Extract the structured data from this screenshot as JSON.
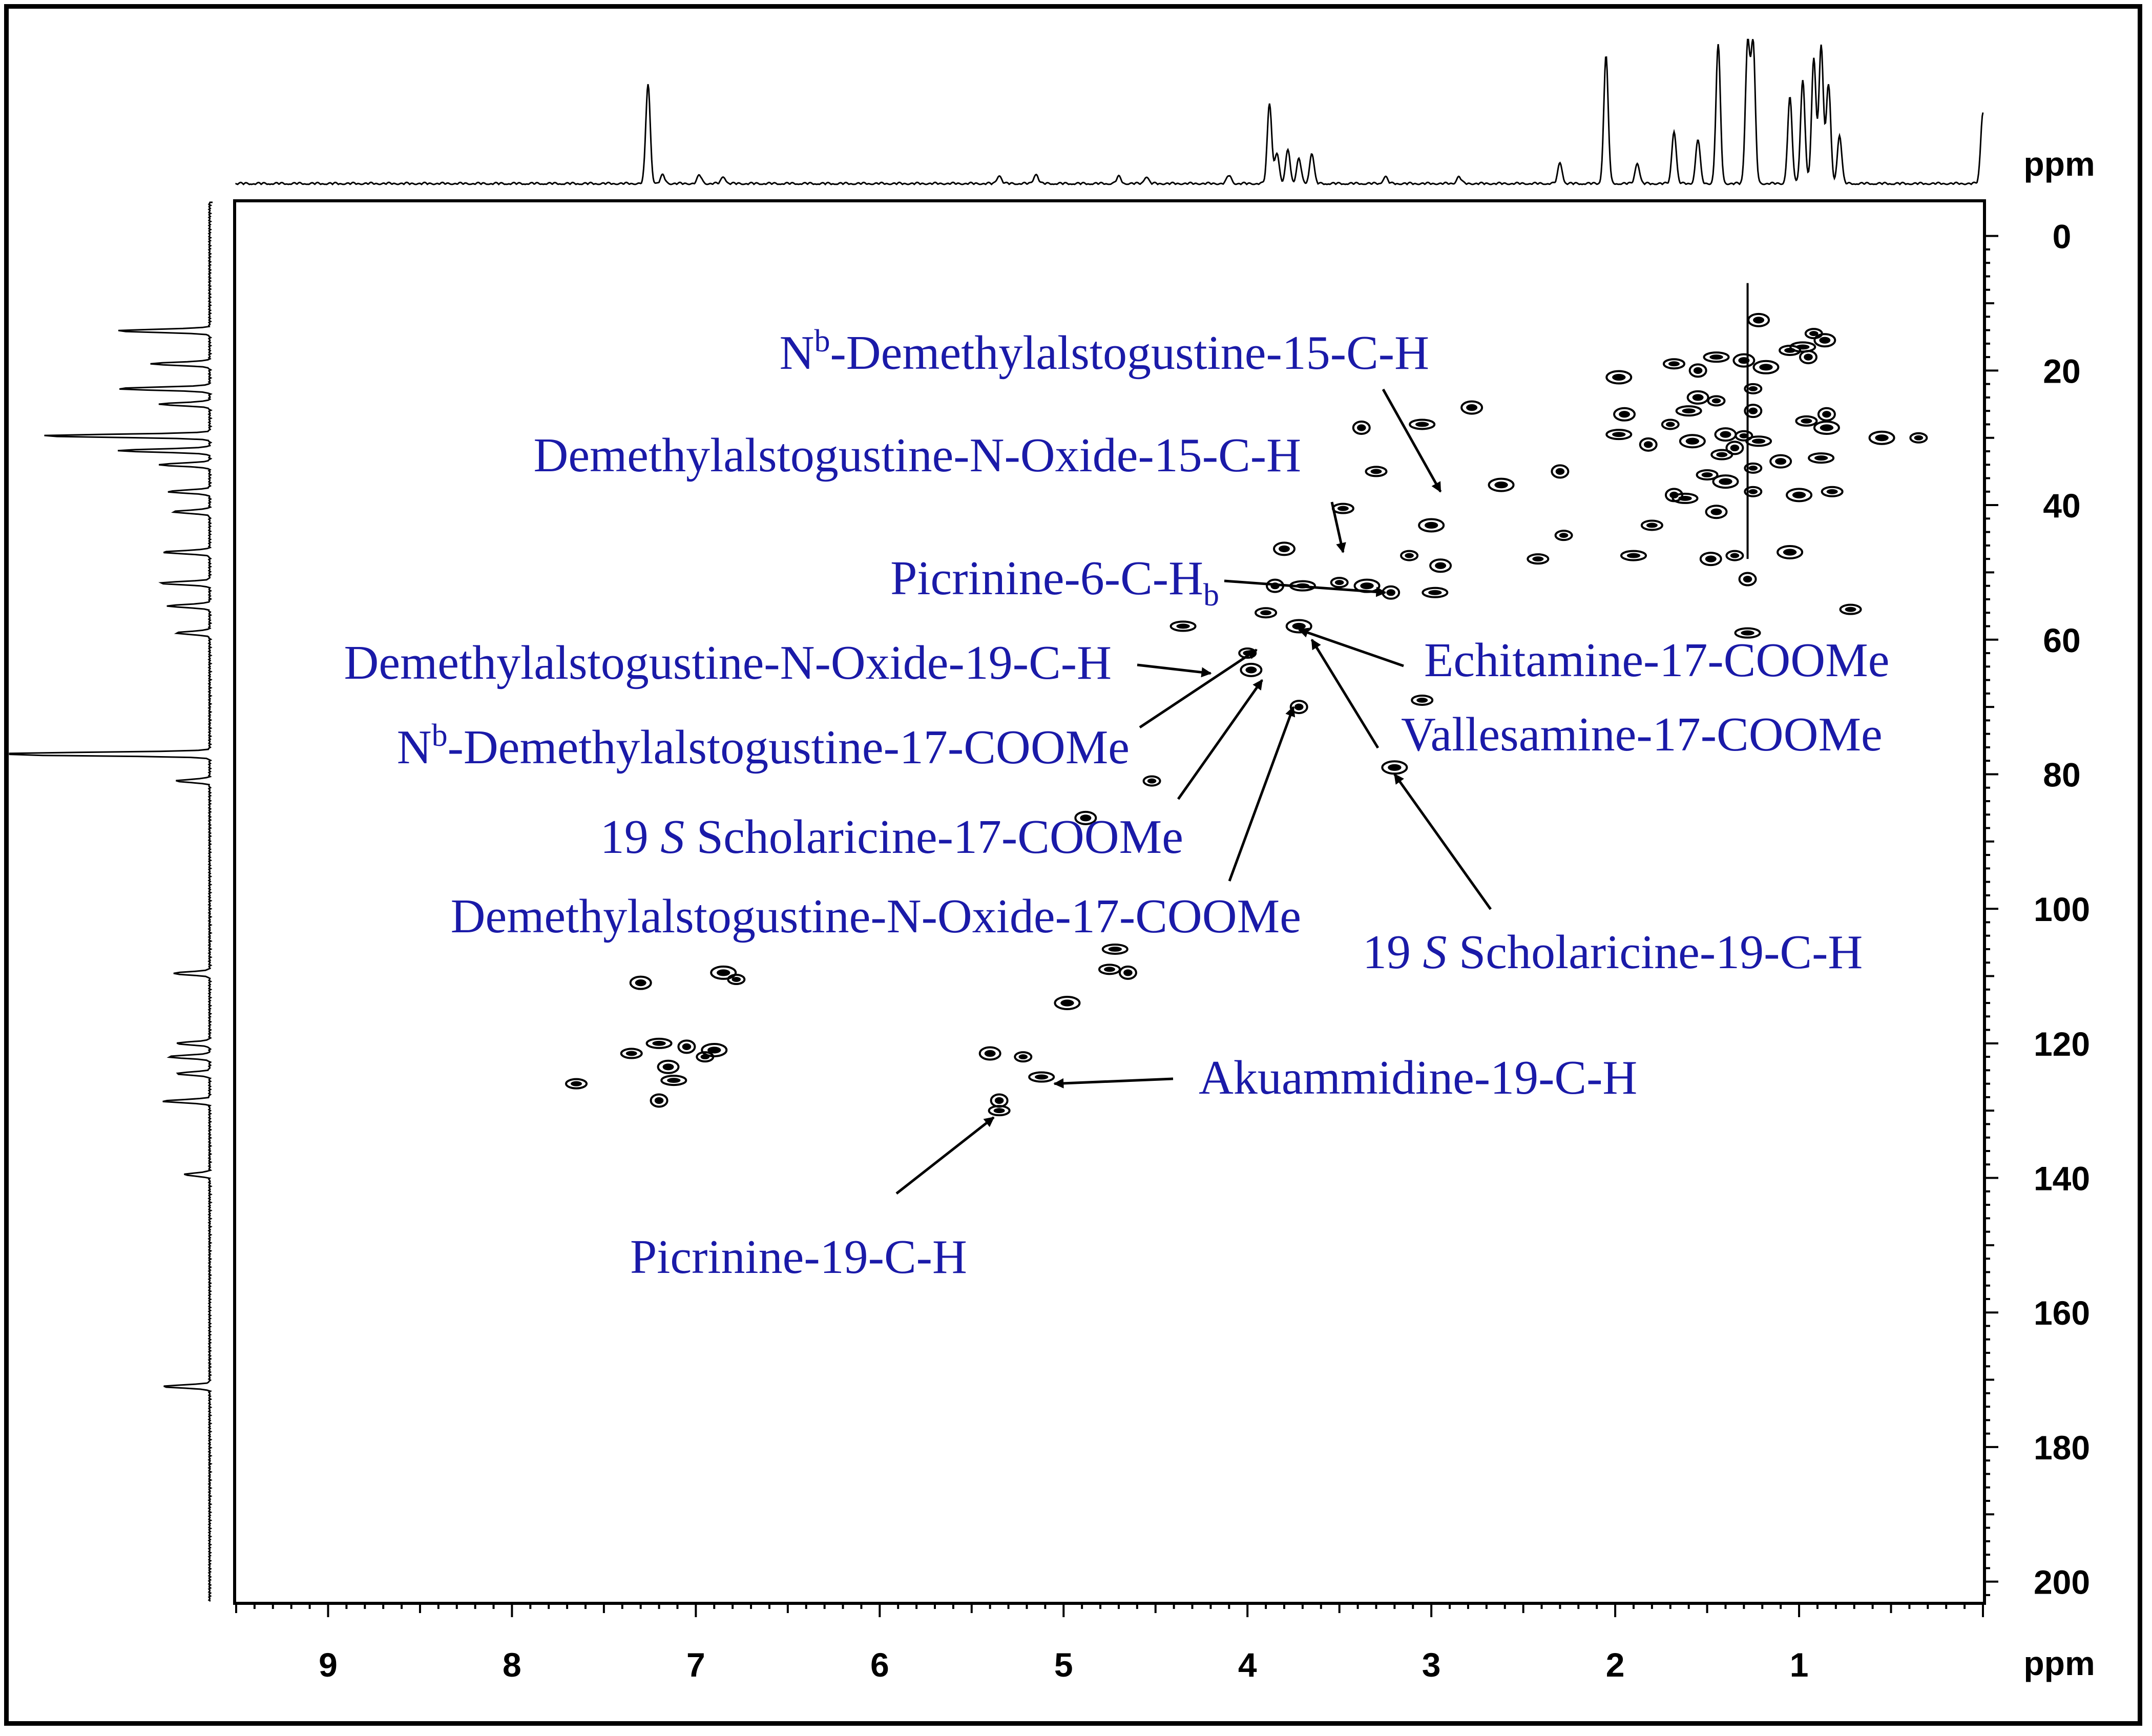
{
  "chart_data": {
    "type": "scatter",
    "subtype": "2D HSQC NMR contour spectrum",
    "x_axis": {
      "label": "ppm",
      "range": [
        9.5,
        0.0
      ],
      "reversed": true,
      "ticks": [
        {
          "value": 9,
          "label": "9"
        },
        {
          "value": 8,
          "label": "8"
        },
        {
          "value": 7,
          "label": "7"
        },
        {
          "value": 6,
          "label": "6"
        },
        {
          "value": 5,
          "label": "5"
        },
        {
          "value": 4,
          "label": "4"
        },
        {
          "value": 3,
          "label": "3"
        },
        {
          "value": 2,
          "label": "2"
        },
        {
          "value": 1,
          "label": "1"
        }
      ]
    },
    "y_axis": {
      "label": "ppm",
      "range": [
        -5,
        203
      ],
      "reversed": true,
      "ticks": [
        {
          "value": 0,
          "label": "0"
        },
        {
          "value": 20,
          "label": "20"
        },
        {
          "value": 40,
          "label": "40"
        },
        {
          "value": 60,
          "label": "60"
        },
        {
          "value": 80,
          "label": "80"
        },
        {
          "value": 100,
          "label": "100"
        },
        {
          "value": 120,
          "label": "120"
        },
        {
          "value": 140,
          "label": "140"
        },
        {
          "value": 160,
          "label": "160"
        },
        {
          "value": 180,
          "label": "180"
        },
        {
          "value": 200,
          "label": "200"
        }
      ]
    },
    "top_projection": {
      "axis": "1H",
      "peaks": [
        {
          "h": 7.26,
          "intensity": 0.72
        },
        {
          "h": 7.18,
          "intensity": 0.06
        },
        {
          "h": 6.98,
          "intensity": 0.06
        },
        {
          "h": 6.85,
          "intensity": 0.05
        },
        {
          "h": 5.35,
          "intensity": 0.06
        },
        {
          "h": 5.15,
          "intensity": 0.07
        },
        {
          "h": 4.7,
          "intensity": 0.05
        },
        {
          "h": 4.55,
          "intensity": 0.05
        },
        {
          "h": 4.1,
          "intensity": 0.06
        },
        {
          "h": 3.88,
          "intensity": 0.58
        },
        {
          "h": 3.84,
          "intensity": 0.22
        },
        {
          "h": 3.78,
          "intensity": 0.25
        },
        {
          "h": 3.72,
          "intensity": 0.18
        },
        {
          "h": 3.65,
          "intensity": 0.22
        },
        {
          "h": 3.25,
          "intensity": 0.05
        },
        {
          "h": 2.85,
          "intensity": 0.05
        },
        {
          "h": 2.3,
          "intensity": 0.15
        },
        {
          "h": 2.05,
          "intensity": 0.92
        },
        {
          "h": 1.88,
          "intensity": 0.15
        },
        {
          "h": 1.68,
          "intensity": 0.38
        },
        {
          "h": 1.55,
          "intensity": 0.32
        },
        {
          "h": 1.44,
          "intensity": 1.0
        },
        {
          "h": 1.28,
          "intensity": 1.0
        },
        {
          "h": 1.25,
          "intensity": 1.0
        },
        {
          "h": 1.05,
          "intensity": 0.62
        },
        {
          "h": 0.98,
          "intensity": 0.75
        },
        {
          "h": 0.92,
          "intensity": 0.9
        },
        {
          "h": 0.88,
          "intensity": 1.0
        },
        {
          "h": 0.84,
          "intensity": 0.72
        },
        {
          "h": 0.78,
          "intensity": 0.35
        },
        {
          "h": 0.0,
          "intensity": 0.52
        }
      ]
    },
    "left_projection": {
      "axis": "13C",
      "peaks": [
        {
          "c": 14.1,
          "intensity": 0.55
        },
        {
          "c": 19.0,
          "intensity": 0.35
        },
        {
          "c": 22.7,
          "intensity": 0.55
        },
        {
          "c": 25.0,
          "intensity": 0.3
        },
        {
          "c": 29.7,
          "intensity": 1.0
        },
        {
          "c": 31.9,
          "intensity": 0.55
        },
        {
          "c": 34.0,
          "intensity": 0.3
        },
        {
          "c": 38.0,
          "intensity": 0.25
        },
        {
          "c": 41.0,
          "intensity": 0.22
        },
        {
          "c": 47.0,
          "intensity": 0.28
        },
        {
          "c": 51.6,
          "intensity": 0.3
        },
        {
          "c": 55.0,
          "intensity": 0.25
        },
        {
          "c": 59.0,
          "intensity": 0.2
        },
        {
          "c": 77.0,
          "intensity": 1.5
        },
        {
          "c": 81.0,
          "intensity": 0.2
        },
        {
          "c": 109.6,
          "intensity": 0.22
        },
        {
          "c": 120.0,
          "intensity": 0.2
        },
        {
          "c": 122.0,
          "intensity": 0.25
        },
        {
          "c": 124.5,
          "intensity": 0.2
        },
        {
          "c": 128.6,
          "intensity": 0.28
        },
        {
          "c": 139.5,
          "intensity": 0.15
        },
        {
          "c": 171.0,
          "intensity": 0.28
        }
      ]
    },
    "cross_peaks": [
      {
        "h": 0.92,
        "c": 14.5
      },
      {
        "h": 0.86,
        "c": 15.5
      },
      {
        "h": 0.98,
        "c": 16.5
      },
      {
        "h": 0.95,
        "c": 18.0
      },
      {
        "h": 1.05,
        "c": 17.0
      },
      {
        "h": 1.18,
        "c": 19.5
      },
      {
        "h": 1.25,
        "c": 22.7
      },
      {
        "h": 1.3,
        "c": 18.5
      },
      {
        "h": 1.45,
        "c": 18.0
      },
      {
        "h": 1.55,
        "c": 20.0
      },
      {
        "h": 1.68,
        "c": 19.0
      },
      {
        "h": 1.98,
        "c": 21.0
      },
      {
        "h": 1.45,
        "c": 24.5
      },
      {
        "h": 1.55,
        "c": 24.0
      },
      {
        "h": 1.6,
        "c": 26.0
      },
      {
        "h": 1.25,
        "c": 26.0
      },
      {
        "h": 0.96,
        "c": 27.5
      },
      {
        "h": 0.85,
        "c": 28.5
      },
      {
        "h": 1.3,
        "c": 29.7
      },
      {
        "h": 1.4,
        "c": 29.5
      },
      {
        "h": 1.22,
        "c": 30.5
      },
      {
        "h": 1.35,
        "c": 31.5
      },
      {
        "h": 1.42,
        "c": 32.5
      },
      {
        "h": 1.58,
        "c": 30.5
      },
      {
        "h": 1.7,
        "c": 28.0
      },
      {
        "h": 1.95,
        "c": 26.5
      },
      {
        "h": 1.98,
        "c": 29.5
      },
      {
        "h": 1.82,
        "c": 31.0
      },
      {
        "h": 1.5,
        "c": 35.5
      },
      {
        "h": 1.4,
        "c": 36.5
      },
      {
        "h": 1.25,
        "c": 34.5
      },
      {
        "h": 1.1,
        "c": 33.5
      },
      {
        "h": 0.88,
        "c": 33.0
      },
      {
        "h": 0.85,
        "c": 26.5
      },
      {
        "h": 0.82,
        "c": 38.0
      },
      {
        "h": 1.0,
        "c": 38.5
      },
      {
        "h": 1.25,
        "c": 38.0
      },
      {
        "h": 1.45,
        "c": 41.0
      },
      {
        "h": 1.62,
        "c": 39.0
      },
      {
        "h": 1.68,
        "c": 38.5
      },
      {
        "h": 1.8,
        "c": 43.0
      },
      {
        "h": 1.05,
        "c": 47.0
      },
      {
        "h": 1.35,
        "c": 47.5
      },
      {
        "h": 1.48,
        "c": 48.0
      },
      {
        "h": 1.9,
        "c": 47.5
      },
      {
        "h": 1.28,
        "c": 51.0
      },
      {
        "h": 0.72,
        "c": 55.5
      },
      {
        "h": 0.55,
        "c": 30.0
      },
      {
        "h": 0.35,
        "c": 30.0
      },
      {
        "h": 1.22,
        "c": 12.5
      },
      {
        "h": 1.28,
        "c": 59.0
      },
      {
        "h": 2.3,
        "c": 35.0
      },
      {
        "h": 2.42,
        "c": 48.0
      },
      {
        "h": 2.62,
        "c": 37.0
      },
      {
        "h": 2.28,
        "c": 44.5
      },
      {
        "h": 2.78,
        "c": 25.5
      },
      {
        "h": 3.05,
        "c": 28.0
      },
      {
        "h": 3.38,
        "c": 28.5
      },
      {
        "h": 3.3,
        "c": 35.0
      },
      {
        "h": 3.0,
        "c": 43.0
      },
      {
        "h": 3.12,
        "c": 47.5
      },
      {
        "h": 2.95,
        "c": 49.0
      },
      {
        "h": 2.98,
        "c": 53.0
      },
      {
        "h": 3.22,
        "c": 53.0
      },
      {
        "h": 3.48,
        "c": 40.5
      },
      {
        "h": 3.35,
        "c": 52.0
      },
      {
        "h": 3.5,
        "c": 51.5
      },
      {
        "h": 3.8,
        "c": 46.5
      },
      {
        "h": 3.7,
        "c": 52.0
      },
      {
        "h": 3.85,
        "c": 52.0
      },
      {
        "h": 3.9,
        "c": 56.0
      },
      {
        "h": 3.72,
        "c": 58.0
      },
      {
        "h": 4.0,
        "c": 62.0
      },
      {
        "h": 3.98,
        "c": 64.5
      },
      {
        "h": 4.35,
        "c": 58.0
      },
      {
        "h": 3.72,
        "c": 70.0
      },
      {
        "h": 3.05,
        "c": 69.0
      },
      {
        "h": 3.2,
        "c": 79.0
      },
      {
        "h": 4.52,
        "c": 81.0
      },
      {
        "h": 4.88,
        "c": 86.5
      },
      {
        "h": 4.72,
        "c": 106.0
      },
      {
        "h": 4.65,
        "c": 109.5
      },
      {
        "h": 4.75,
        "c": 109.0
      },
      {
        "h": 4.98,
        "c": 114.0
      },
      {
        "h": 5.22,
        "c": 122.0
      },
      {
        "h": 5.4,
        "c": 121.5
      },
      {
        "h": 5.12,
        "c": 125.0
      },
      {
        "h": 5.35,
        "c": 128.5
      },
      {
        "h": 5.35,
        "c": 130.0
      },
      {
        "h": 6.85,
        "c": 109.5
      },
      {
        "h": 6.78,
        "c": 110.5
      },
      {
        "h": 7.3,
        "c": 111.0
      },
      {
        "h": 7.2,
        "c": 120.0
      },
      {
        "h": 7.05,
        "c": 120.5
      },
      {
        "h": 7.35,
        "c": 121.5
      },
      {
        "h": 6.9,
        "c": 121.0
      },
      {
        "h": 6.95,
        "c": 122.0
      },
      {
        "h": 7.15,
        "c": 123.5
      },
      {
        "h": 7.12,
        "c": 125.5
      },
      {
        "h": 7.2,
        "c": 128.5
      },
      {
        "h": 7.65,
        "c": 126.0
      }
    ],
    "annotations": [
      {
        "id": "nb-demethylalstogustine-15",
        "parts": [
          "N",
          "^b",
          "-Demethylalstogustine-15-C-H"
        ],
        "target": {
          "h": 2.95,
          "c": 38.0
        }
      },
      {
        "id": "demethylalstogustine-n-oxide-15",
        "parts": [
          "Demethylalstogustine-N-Oxide-15-C-H"
        ],
        "target": {
          "h": 3.48,
          "c": 47.0
        }
      },
      {
        "id": "picrinine-6",
        "parts": [
          "Picrinine-6-C-H",
          "_b"
        ],
        "target": {
          "h": 3.25,
          "c": 53.0
        }
      },
      {
        "id": "echitamine-17",
        "parts": [
          "Echitamine-17-COOMe"
        ],
        "target": {
          "h": 3.72,
          "c": 58.5
        }
      },
      {
        "id": "demethylalstogustine-n-oxide-19",
        "parts": [
          "Demethylalstogustine-N-Oxide-19-C-H"
        ],
        "target": {
          "h": 4.2,
          "c": 65.0
        }
      },
      {
        "id": "vallesamine-17",
        "parts": [
          "Vallesamine-17-COOMe"
        ],
        "target": {
          "h": 3.65,
          "c": 60.0
        }
      },
      {
        "id": "nb-demethylalstogustine-17",
        "parts": [
          "N",
          "^b",
          "-Demethylalstogustine-17-COOMe"
        ],
        "target": {
          "h": 3.95,
          "c": 61.5
        }
      },
      {
        "id": "19s-scholaricine-17",
        "parts": [
          "19 ",
          "~S",
          " Scholaricine-17-COOMe"
        ],
        "target": {
          "h": 3.92,
          "c": 66.0
        }
      },
      {
        "id": "demethylalstogustine-n-oxide-17",
        "parts": [
          "Demethylalstogustine-N-Oxide-17-COOMe"
        ],
        "target": {
          "h": 3.75,
          "c": 70.0
        }
      },
      {
        "id": "19s-scholaricine-19",
        "parts": [
          "19 ",
          "~S",
          " Scholaricine-19-C-H"
        ],
        "target": {
          "h": 3.2,
          "c": 80.0
        }
      },
      {
        "id": "akuammidine-19",
        "parts": [
          "Akuammidine-19-C-H"
        ],
        "target": {
          "h": 5.05,
          "c": 126.0
        }
      },
      {
        "id": "picrinine-19",
        "parts": [
          "Picrinine-19-C-H"
        ],
        "target": {
          "h": 5.38,
          "c": 131.0
        }
      }
    ]
  },
  "colors": {
    "annotation": "#1a1aa8",
    "ink": "#000000"
  }
}
